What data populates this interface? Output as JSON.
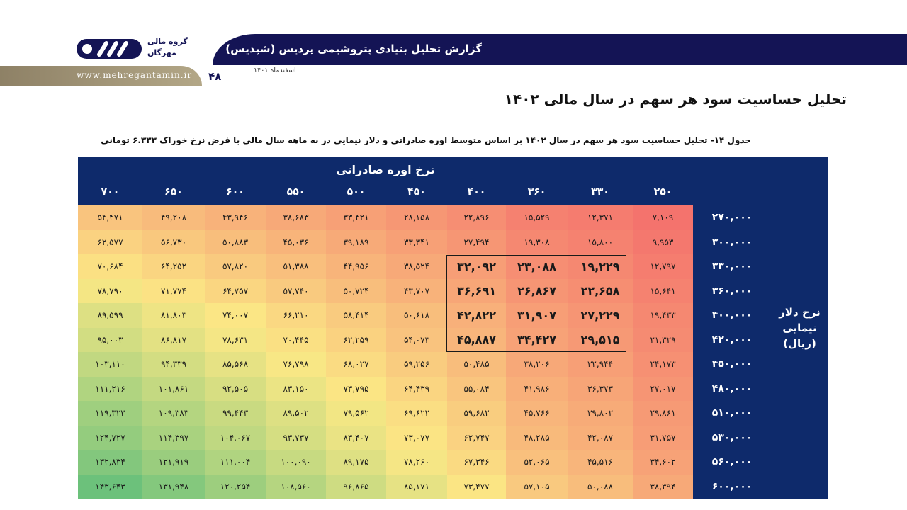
{
  "header": {
    "title": "گزارش تحلیل بنیادی پتروشیمی پردیس (شپدیس)",
    "date": "اسفندماه ۱۴۰۱",
    "page_number": "۴۸",
    "url": "www.mehregantamin.ir",
    "logo_line1": "گروه مالی",
    "logo_line2": "مهرگان"
  },
  "page_title": "تحلیل حساسیت سود هر سهم در سال مالی ۱۴۰۲",
  "caption": "جدول ۱۴- تحلیل حساسیت سود هر سهم در سال ۱۴۰۲ بر اساس متوسط اوره صادراتی و دلار نیمایی در نه ماهه سال مالی با فرض نرخ خوراک ۶.۳۳۳ تومانی",
  "colors": {
    "header_navy": "#141455",
    "table_navy": "#0e2a6b",
    "heat_low": "#f4736d",
    "heat_mid": "#fbe885",
    "heat_high": "#6cc17b"
  },
  "table": {
    "column_group_title": "نرخ اوره صادراتی",
    "row_group_title_line1": "نرخ دلار",
    "row_group_title_line2": "نیمایی",
    "row_group_title_line3": "(ریال)",
    "columns": [
      "۲۵۰",
      "۳۳۰",
      "۳۶۰",
      "۴۰۰",
      "۴۵۰",
      "۵۰۰",
      "۵۵۰",
      "۶۰۰",
      "۶۵۰",
      "۷۰۰"
    ],
    "rows": [
      {
        "label": "۲۷۰,۰۰۰",
        "values": [
          "۷,۱۰۹",
          "۱۲,۳۷۱",
          "۱۵,۵۲۹",
          "۲۲,۸۹۶",
          "۲۸,۱۵۸",
          "۳۳,۴۲۱",
          "۳۸,۶۸۳",
          "۴۳,۹۴۶",
          "۴۹,۲۰۸",
          "۵۴,۴۷۱"
        ]
      },
      {
        "label": "۳۰۰,۰۰۰",
        "values": [
          "۹,۹۵۳",
          "۱۵,۸۰۰",
          "۱۹,۳۰۸",
          "۲۷,۴۹۴",
          "۳۳,۳۴۱",
          "۳۹,۱۸۹",
          "۴۵,۰۳۶",
          "۵۰,۸۸۳",
          "۵۶,۷۳۰",
          "۶۲,۵۷۷"
        ]
      },
      {
        "label": "۳۳۰,۰۰۰",
        "values": [
          "۱۲,۷۹۷",
          "۱۹,۲۲۹",
          "۲۳,۰۸۸",
          "۳۲,۰۹۲",
          "۳۸,۵۲۴",
          "۴۴,۹۵۶",
          "۵۱,۳۸۸",
          "۵۷,۸۲۰",
          "۶۴,۲۵۲",
          "۷۰,۶۸۴"
        ]
      },
      {
        "label": "۳۶۰,۰۰۰",
        "values": [
          "۱۵,۶۴۱",
          "۲۲,۶۵۸",
          "۲۶,۸۶۷",
          "۳۶,۶۹۱",
          "۴۳,۷۰۷",
          "۵۰,۷۲۴",
          "۵۷,۷۴۰",
          "۶۴,۷۵۷",
          "۷۱,۷۷۴",
          "۷۸,۷۹۰"
        ]
      },
      {
        "label": "۴۰۰,۰۰۰",
        "values": [
          "۱۹,۴۳۳",
          "۲۷,۲۲۹",
          "۳۱,۹۰۷",
          "۴۲,۸۲۲",
          "۵۰,۶۱۸",
          "۵۸,۴۱۴",
          "۶۶,۲۱۰",
          "۷۴,۰۰۷",
          "۸۱,۸۰۳",
          "۸۹,۵۹۹"
        ]
      },
      {
        "label": "۴۲۰,۰۰۰",
        "values": [
          "۲۱,۳۲۹",
          "۲۹,۵۱۵",
          "۳۴,۴۲۷",
          "۴۵,۸۸۷",
          "۵۴,۰۷۳",
          "۶۲,۲۵۹",
          "۷۰,۴۴۵",
          "۷۸,۶۳۱",
          "۸۶,۸۱۷",
          "۹۵,۰۰۳"
        ]
      },
      {
        "label": "۴۵۰,۰۰۰",
        "values": [
          "۲۴,۱۷۳",
          "۳۲,۹۴۴",
          "۳۸,۲۰۶",
          "۵۰,۴۸۵",
          "۵۹,۲۵۶",
          "۶۸,۰۲۷",
          "۷۶,۷۹۸",
          "۸۵,۵۶۸",
          "۹۴,۳۳۹",
          "۱۰۳,۱۱۰"
        ]
      },
      {
        "label": "۴۸۰,۰۰۰",
        "values": [
          "۲۷,۰۱۷",
          "۳۶,۳۷۳",
          "۴۱,۹۸۶",
          "۵۵,۰۸۴",
          "۶۴,۴۳۹",
          "۷۳,۷۹۵",
          "۸۳,۱۵۰",
          "۹۲,۵۰۵",
          "۱۰۱,۸۶۱",
          "۱۱۱,۲۱۶"
        ]
      },
      {
        "label": "۵۱۰,۰۰۰",
        "values": [
          "۲۹,۸۶۱",
          "۳۹,۸۰۲",
          "۴۵,۷۶۶",
          "۵۹,۶۸۲",
          "۶۹,۶۲۲",
          "۷۹,۵۶۲",
          "۸۹,۵۰۲",
          "۹۹,۴۴۳",
          "۱۰۹,۳۸۳",
          "۱۱۹,۳۲۳"
        ]
      },
      {
        "label": "۵۳۰,۰۰۰",
        "values": [
          "۳۱,۷۵۷",
          "۴۲,۰۸۷",
          "۴۸,۲۸۵",
          "۶۲,۷۴۷",
          "۷۳,۰۷۷",
          "۸۳,۴۰۷",
          "۹۳,۷۳۷",
          "۱۰۴,۰۶۷",
          "۱۱۴,۳۹۷",
          "۱۲۴,۷۲۷"
        ]
      },
      {
        "label": "۵۶۰,۰۰۰",
        "values": [
          "۳۴,۶۰۲",
          "۴۵,۵۱۶",
          "۵۲,۰۶۵",
          "۶۷,۳۴۶",
          "۷۸,۲۶۰",
          "۸۹,۱۷۵",
          "۱۰۰,۰۹۰",
          "۱۱۱,۰۰۴",
          "۱۲۱,۹۱۹",
          "۱۳۲,۸۳۴"
        ]
      },
      {
        "label": "۶۰۰,۰۰۰",
        "values": [
          "۳۸,۳۹۴",
          "۵۰,۰۸۸",
          "۵۷,۱۰۵",
          "۷۳,۴۷۷",
          "۸۵,۱۷۱",
          "۹۶,۸۶۵",
          "۱۰۸,۵۶۰",
          "۱۲۰,۲۵۴",
          "۱۳۱,۹۴۸",
          "۱۴۳,۶۴۳"
        ]
      }
    ],
    "numeric": [
      [
        7109,
        12371,
        15529,
        22896,
        28158,
        33421,
        38683,
        43946,
        49208,
        54471
      ],
      [
        9953,
        15800,
        19308,
        27494,
        33341,
        39189,
        45036,
        50883,
        56730,
        62577
      ],
      [
        12797,
        19229,
        23088,
        32092,
        38524,
        44956,
        51388,
        57820,
        64252,
        70684
      ],
      [
        15641,
        22658,
        26867,
        36691,
        43707,
        50724,
        57740,
        64757,
        71774,
        78790
      ],
      [
        19433,
        27229,
        31907,
        42822,
        50618,
        58414,
        66210,
        74007,
        81803,
        89599
      ],
      [
        21329,
        29515,
        34427,
        45887,
        54073,
        62259,
        70445,
        78631,
        86817,
        95003
      ],
      [
        24173,
        32944,
        38206,
        50485,
        59256,
        68027,
        76798,
        85568,
        94339,
        103110
      ],
      [
        27017,
        36373,
        41986,
        55084,
        64439,
        73795,
        83150,
        92505,
        101861,
        111216
      ],
      [
        29861,
        39802,
        45766,
        59682,
        69622,
        79562,
        89502,
        99443,
        109383,
        119323
      ],
      [
        31757,
        42087,
        48285,
        62747,
        73077,
        83407,
        93737,
        104067,
        114397,
        124727
      ],
      [
        34602,
        45516,
        52065,
        67346,
        78260,
        89175,
        100090,
        111004,
        121919,
        132834
      ],
      [
        38394,
        50088,
        57105,
        73477,
        85171,
        96865,
        108560,
        120254,
        131948,
        143643
      ]
    ],
    "highlighted_rows": [
      2,
      3,
      4,
      5
    ],
    "highlighted_cols": [
      1,
      2,
      3
    ]
  }
}
